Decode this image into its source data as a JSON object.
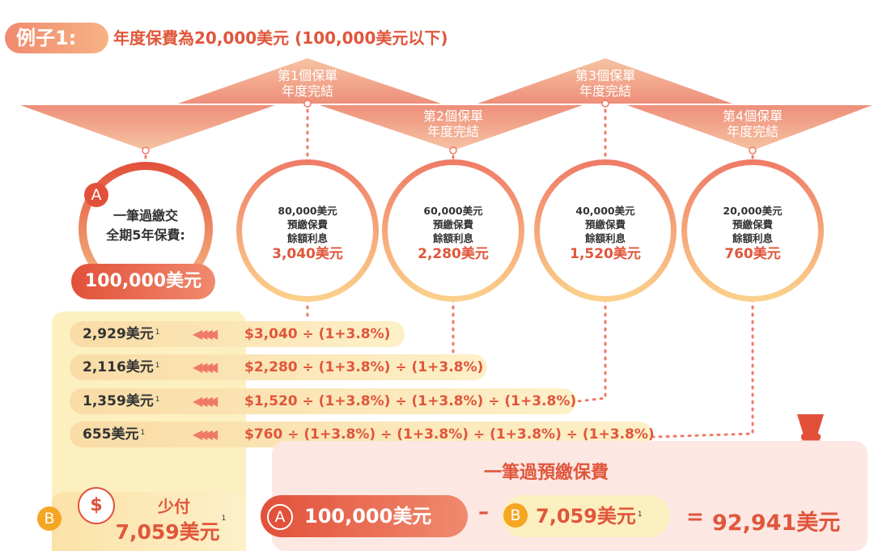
{
  "header": {
    "example_label": "例子1:",
    "subtitle": "年度保費為20,000美元 (100,000美元以下)"
  },
  "policy_years": [
    {
      "line1": "第1個保單",
      "line2": "年度完結"
    },
    {
      "line1": "第2個保單",
      "line2": "年度完結"
    },
    {
      "line1": "第3個保單",
      "line2": "年度完結"
    },
    {
      "line1": "第4個保單",
      "line2": "年度完結"
    }
  ],
  "lump_sum": {
    "badge": "A",
    "line1": "一筆過繳交",
    "line2": "全期5年保費:",
    "amount": "100,000美元"
  },
  "circles": [
    {
      "balance": "80,000美元",
      "line2": "預繳保費",
      "line3": "餘額利息",
      "interest": "3,040美元"
    },
    {
      "balance": "60,000美元",
      "line2": "預繳保費",
      "line3": "餘額利息",
      "interest": "2,280美元"
    },
    {
      "balance": "40,000美元",
      "line2": "預繳保費",
      "line3": "餘額利息",
      "interest": "1,520美元"
    },
    {
      "balance": "20,000美元",
      "line2": "預繳保費",
      "line3": "餘額利息",
      "interest": "760美元"
    }
  ],
  "discount_rows": [
    {
      "value": "2,929美元",
      "sup": "1",
      "formula": "$3,040 ÷ (1+3.8%)"
    },
    {
      "value": "2,116美元",
      "sup": "1",
      "formula": "$2,280 ÷ (1+3.8%) ÷ (1+3.8%)"
    },
    {
      "value": "1,359美元",
      "sup": "1",
      "formula": "$1,520 ÷ (1+3.8%) ÷ (1+3.8%) ÷ (1+3.8%)"
    },
    {
      "value": "655美元",
      "sup": "1",
      "formula": "$760 ÷ (1+3.8%) ÷ (1+3.8%) ÷ (1+3.8%) ÷ (1+3.8%)"
    }
  ],
  "savings": {
    "badge": "B",
    "label": "少付",
    "amount": "7,059美元",
    "sup": "1"
  },
  "result": {
    "title": "一筆過預繳保費",
    "a_badge": "A",
    "a_amount": "100,000美元",
    "minus": "–",
    "b_badge": "B",
    "b_amount": "7,059美元",
    "b_sup": "1",
    "equals": "=",
    "total": "92,941美元"
  },
  "colors": {
    "accent": "#e0563b",
    "coral": "#f08a6e",
    "light_yellow": "#fdf0c0",
    "orange_badge": "#f5a623"
  }
}
